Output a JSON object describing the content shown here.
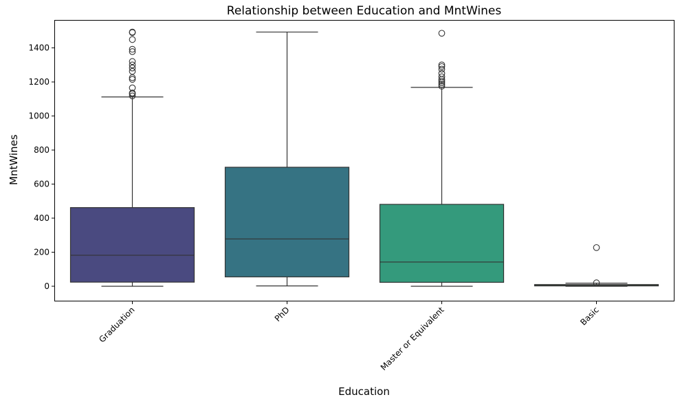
{
  "chart_data": {
    "type": "box",
    "title": "Relationship between Education and MntWines",
    "xlabel": "Education",
    "ylabel": "MntWines",
    "categories": [
      "Graduation",
      "PhD",
      "Master or Equivalent",
      "Basic"
    ],
    "ylim": [
      -85,
      1560
    ],
    "yticks": [
      0,
      200,
      400,
      600,
      800,
      1000,
      1200,
      1400
    ],
    "grid": false,
    "legend": "none",
    "colors": [
      "#4a4a80",
      "#367383",
      "#349a7c",
      "#7ccf88"
    ],
    "boxes": [
      {
        "category": "Graduation",
        "min": 0,
        "q1": 24,
        "median": 182,
        "q3": 462,
        "max": 1112,
        "outliers": [
          1118,
          1130,
          1135,
          1165,
          1215,
          1225,
          1262,
          1282,
          1300,
          1320,
          1378,
          1392,
          1449,
          1490,
          1493
        ]
      },
      {
        "category": "PhD",
        "min": 2,
        "q1": 55,
        "median": 278,
        "q3": 699,
        "max": 1493,
        "outliers": []
      },
      {
        "category": "Master or Equivalent",
        "min": 0,
        "q1": 23,
        "median": 142,
        "q3": 481,
        "max": 1168,
        "outliers": [
          1175,
          1185,
          1195,
          1205,
          1215,
          1230,
          1250,
          1275,
          1290,
          1300,
          1486
        ]
      },
      {
        "category": "Basic",
        "min": 0,
        "q1": 2,
        "median": 5,
        "q3": 10,
        "max": 18,
        "outliers": [
          20,
          227
        ]
      }
    ]
  }
}
